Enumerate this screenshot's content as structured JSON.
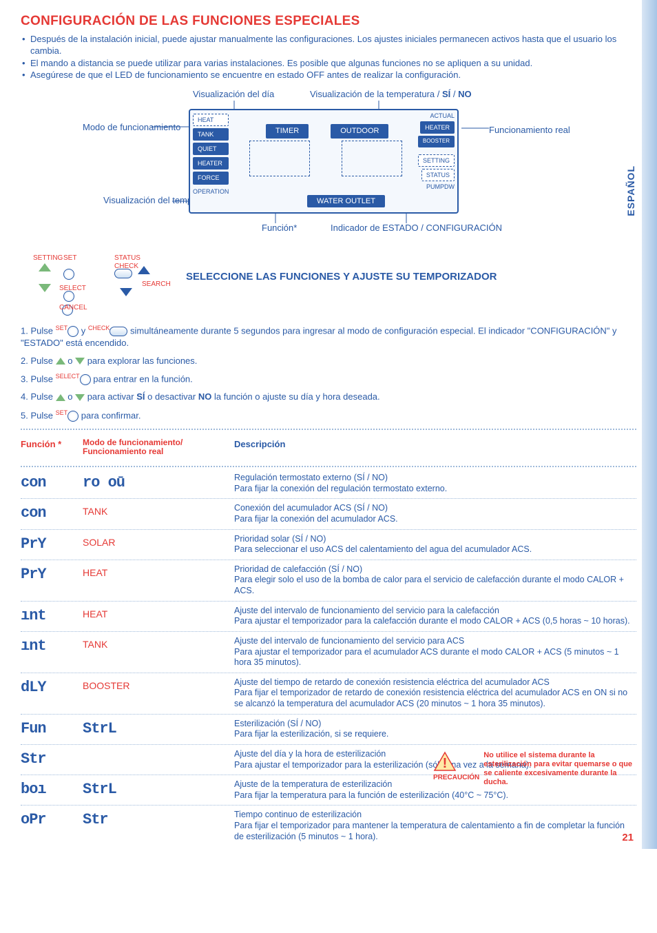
{
  "page": {
    "title": "CONFIGURACIÓN DE LAS FUNCIONES ESPECIALES",
    "lang_tab": "ESPAÑOL",
    "page_number": "21"
  },
  "intro_bullets": [
    "Después de la instalación inicial, puede ajustar manualmente las configuraciones. Los ajustes iniciales permanecen activos hasta que el usuario los cambia.",
    "El mando a distancia se puede utilizar para varias instalaciones. Es posible que algunas funciones no se apliquen a su unidad.",
    "Asegúrese de que el LED de funcionamiento se encuentre en estado OFF antes de realizar la configuración."
  ],
  "display": {
    "top_labels": {
      "day": "Visualización del día",
      "temp": "Visualización de la temperatura / ",
      "si": "SÍ",
      "no": "NO"
    },
    "left_labels": {
      "mode": "Modo de funcionamiento",
      "timer_disp": "Visualización del temporizador"
    },
    "right_label": "Funcionamiento real",
    "bottom_labels": {
      "func": "Función*",
      "status": "Indicador de ESTADO / CONFIGURACIÓN"
    },
    "badges_left": [
      "HEAT",
      "TANK",
      "QUIET",
      "HEATER",
      "FORCE",
      "OPERATION"
    ],
    "badges_right": [
      "ACTUAL",
      "HEATER",
      "BOOSTER",
      "SETTING",
      "STATUS",
      "PUMPDW"
    ],
    "tabs_top": [
      "TIMER",
      "OUTDOOR"
    ],
    "tab_bottom": "WATER OUTLET"
  },
  "controls": {
    "setting": "SETTING",
    "status": "STATUS",
    "set": "SET",
    "check": "CHECK",
    "select": "SELECT",
    "cancel": "CANCEL",
    "search": "SEARCH"
  },
  "section_sub": "SELECCIONE LAS FUNCIONES Y AJUSTE SU TEMPORIZADOR",
  "steps": [
    {
      "pre": "1.  Pulse ",
      "mid": " y ",
      "post": " simultáneamente durante 5 segundos para ingresar al modo de configuración especial. El indicador \"CONFIGURACIÓN\" y \"ESTADO\" está encendido."
    },
    {
      "pre": "2.  Pulse ",
      "mid": " o ",
      "post": " para explorar las funciones."
    },
    {
      "pre": "3.  Pulse ",
      "post": " para entrar en la función."
    },
    {
      "pre": "4.  Pulse ",
      "mid": " o ",
      "post1": " para activar ",
      "si": "SÍ",
      "post2": " o desactivar ",
      "no": "NO",
      "post3": " la función o ajuste su día y hora deseada."
    },
    {
      "pre": "5.  Pulse ",
      "post": " para confirmar."
    }
  ],
  "table_head": {
    "func": "Función *",
    "mode": "Modo de funcionamiento/ Funcionamiento real",
    "desc": "Descripción"
  },
  "rows": [
    {
      "seg": "con",
      "mode": "ro oū",
      "mode_is_seg": true,
      "desc": "Regulación termostato externo (SÍ / NO)\nPara fijar la conexión del regulación termostato externo."
    },
    {
      "seg": "con",
      "mode": "TANK",
      "desc": "Conexión del acumulador ACS (SÍ / NO)\nPara fijar la conexión del acumulador ACS."
    },
    {
      "seg": "PrY",
      "mode": "SOLAR",
      "desc": "Prioridad solar (SÍ / NO)\nPara seleccionar el uso ACS del calentamiento del agua del acumulador ACS."
    },
    {
      "seg": "PrY",
      "mode": "HEAT",
      "desc": "Prioridad de calefacción (SÍ / NO)\nPara elegir solo el uso de la bomba de calor para el servicio de calefacción durante el modo CALOR + ACS."
    },
    {
      "seg": "ınt",
      "mode": "HEAT",
      "desc": "Ajuste del intervalo de funcionamiento del servicio para la calefacción\nPara ajustar el temporizador para la calefacción durante el modo CALOR + ACS (0,5 horas ~ 10 horas)."
    },
    {
      "seg": "ınt",
      "mode": "TANK",
      "desc": "Ajuste del intervalo de funcionamiento del servicio para ACS\nPara ajustar el temporizador para el acumulador ACS durante el modo CALOR + ACS (5 minutos ~ 1 hora 35 minutos)."
    },
    {
      "seg": "dLY",
      "mode": "BOOSTER",
      "desc": "Ajuste del tiempo de retardo de conexión resistencia eléctrica del acumulador ACS\nPara fijar el temporizador de retardo de conexión resistencia eléctrica del acumulador ACS en ON si no se alcanzó la temperatura del acumulador ACS (20 minutos ~ 1 hora 35 minutos)."
    },
    {
      "seg": "Fun",
      "mode": "StrL",
      "mode_is_seg": true,
      "desc": "Esterilización (SÍ / NO)\nPara fijar la esterilización, si se requiere."
    },
    {
      "seg": "Str",
      "mode": "",
      "desc": "Ajuste del día y la hora de esterilización\nPara ajustar el temporizador para la esterilización (sólo una vez a la semana)."
    },
    {
      "seg": "boı",
      "mode": "StrL",
      "mode_is_seg": true,
      "desc": "Ajuste de la temperatura de esterilización\nPara fijar la temperatura para la función de esterilización (40°C ~ 75°C)."
    },
    {
      "seg": "oPr",
      "mode": "Str",
      "mode_is_seg": true,
      "desc": "Tiempo continuo de esterilización\nPara fijar el temporizador para mantener la temperatura de calentamiento a fin de completar la función de esterilización (5 minutos ~ 1 hora)."
    }
  ],
  "warning": {
    "caution": "PRECAUCIÓN",
    "text": "No utilice el sistema durante la esterilización para evitar quemarse o que se caliente excesivamente durante la ducha."
  },
  "step_icon_labels": {
    "set": "SET",
    "check": "CHECK",
    "select": "SELECT"
  }
}
